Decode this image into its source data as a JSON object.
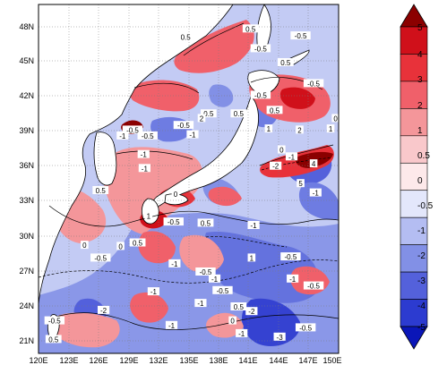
{
  "map": {
    "lat_labels": [
      "48N",
      "45N",
      "42N",
      "39N",
      "36N",
      "33N",
      "30N",
      "27N",
      "24N",
      "21N"
    ],
    "lon_labels": [
      "120E",
      "123E",
      "126E",
      "129E",
      "132E",
      "135E",
      "138E",
      "141E",
      "144E",
      "147E",
      "150E"
    ],
    "extent": {
      "lon_min": 120,
      "lon_max": 150,
      "lat_min": 20,
      "lat_max": 50
    }
  },
  "colorbar": {
    "labels": [
      "5",
      "4",
      "3",
      "2",
      "1",
      "0.5",
      "0",
      "-0.5",
      "-1",
      "-2",
      "-3",
      "-4",
      "-5"
    ],
    "colors": [
      "#8b0000",
      "#d0101a",
      "#e8323a",
      "#f0606a",
      "#f4969a",
      "#f9c8cb",
      "#fde9ea",
      "#e3e7fb",
      "#b4bdf2",
      "#8290e6",
      "#5461db",
      "#2c3bd0",
      "#0a16b8"
    ]
  },
  "contour_labels": [
    {
      "text": "0",
      "lon": 124.6,
      "lat": 29.3
    },
    {
      "text": "-0.5",
      "lon": 126.2,
      "lat": 28.2
    },
    {
      "text": "0",
      "lon": 128.2,
      "lat": 29.2
    },
    {
      "text": "-1",
      "lon": 133.6,
      "lat": 27.7
    },
    {
      "text": "-0.5",
      "lon": 136.7,
      "lat": 27.0
    },
    {
      "text": "-1",
      "lon": 137.6,
      "lat": 26.4
    },
    {
      "text": "-0.5",
      "lon": 138.4,
      "lat": 25.4
    },
    {
      "text": "1",
      "lon": 141.3,
      "lat": 28.2
    },
    {
      "text": "-0.5",
      "lon": 145.2,
      "lat": 28.3
    },
    {
      "text": "-0.5",
      "lon": 147.5,
      "lat": 25.8
    },
    {
      "text": "-1",
      "lon": 145.4,
      "lat": 26.4
    },
    {
      "text": "-2",
      "lon": 126.5,
      "lat": 23.7
    },
    {
      "text": "-2",
      "lon": 141.3,
      "lat": 23.6
    },
    {
      "text": "-3",
      "lon": 144.1,
      "lat": 21.4
    },
    {
      "text": "-1",
      "lon": 140.3,
      "lat": 21.7
    },
    {
      "text": "-1",
      "lon": 131.5,
      "lat": 25.3
    },
    {
      "text": "0.5",
      "lon": 121.5,
      "lat": 21.2
    },
    {
      "text": "-0.5",
      "lon": 121.6,
      "lat": 22.8
    },
    {
      "text": "-1",
      "lon": 133.3,
      "lat": 22.4
    },
    {
      "text": "-1",
      "lon": 136.2,
      "lat": 24.3
    },
    {
      "text": "0",
      "lon": 139.4,
      "lat": 22.8
    },
    {
      "text": "-1",
      "lon": 141.5,
      "lat": 31.0
    },
    {
      "text": "-1",
      "lon": 147.7,
      "lat": 33.8
    },
    {
      "text": "5",
      "lon": 146.2,
      "lat": 34.6
    },
    {
      "text": "-2",
      "lon": 143.7,
      "lat": 36.1
    },
    {
      "text": "4",
      "lon": 147.5,
      "lat": 36.3
    },
    {
      "text": "0.5",
      "lon": 136.7,
      "lat": 31.2
    },
    {
      "text": "-1",
      "lon": 130.6,
      "lat": 35.9
    },
    {
      "text": "0",
      "lon": 133.7,
      "lat": 33.7
    },
    {
      "text": "-0.5",
      "lon": 133.5,
      "lat": 31.3
    },
    {
      "text": "1",
      "lon": 131.0,
      "lat": 31.8
    },
    {
      "text": "0.5",
      "lon": 126.2,
      "lat": 34.0
    },
    {
      "text": "-0.5",
      "lon": 130.9,
      "lat": 38.7
    },
    {
      "text": "-1",
      "lon": 130.5,
      "lat": 37.1
    },
    {
      "text": "-0.5",
      "lon": 134.5,
      "lat": 39.6
    },
    {
      "text": "-1",
      "lon": 135.4,
      "lat": 38.8
    },
    {
      "text": "0.5",
      "lon": 137.0,
      "lat": 40.6
    },
    {
      "text": "2",
      "lon": 136.3,
      "lat": 40.2
    },
    {
      "text": "0.5",
      "lon": 140.0,
      "lat": 40.6
    },
    {
      "text": "-0.5",
      "lon": 129.4,
      "lat": 39.2
    },
    {
      "text": "-1",
      "lon": 128.4,
      "lat": 38.7
    },
    {
      "text": "-0.5",
      "lon": 142.2,
      "lat": 42.2
    },
    {
      "text": "0.5",
      "lon": 143.6,
      "lat": 40.9
    },
    {
      "text": "1",
      "lon": 143.0,
      "lat": 39.3
    },
    {
      "text": "2",
      "lon": 146.1,
      "lat": 39.2
    },
    {
      "text": "1",
      "lon": 149.2,
      "lat": 39.3
    },
    {
      "text": "0",
      "lon": 149.7,
      "lat": 40.2
    },
    {
      "text": "-0.5",
      "lon": 146.2,
      "lat": 47.3
    },
    {
      "text": "0.5",
      "lon": 144.7,
      "lat": 45.0
    },
    {
      "text": "-0.5",
      "lon": 142.2,
      "lat": 46.2
    },
    {
      "text": "0.5",
      "lon": 134.7,
      "lat": 47.2
    },
    {
      "text": "0.5",
      "lon": 141.2,
      "lat": 47.9
    },
    {
      "text": "-0.5",
      "lon": 147.5,
      "lat": 43.2
    },
    {
      "text": "-1",
      "lon": 145.3,
      "lat": 36.9
    },
    {
      "text": "0",
      "lon": 144.3,
      "lat": 37.5
    },
    {
      "text": "0.5",
      "lon": 129.9,
      "lat": 29.5
    },
    {
      "text": "-0.5",
      "lon": 146.7,
      "lat": 22.2
    },
    {
      "text": "0.5",
      "lon": 140.0,
      "lat": 24.0
    }
  ]
}
